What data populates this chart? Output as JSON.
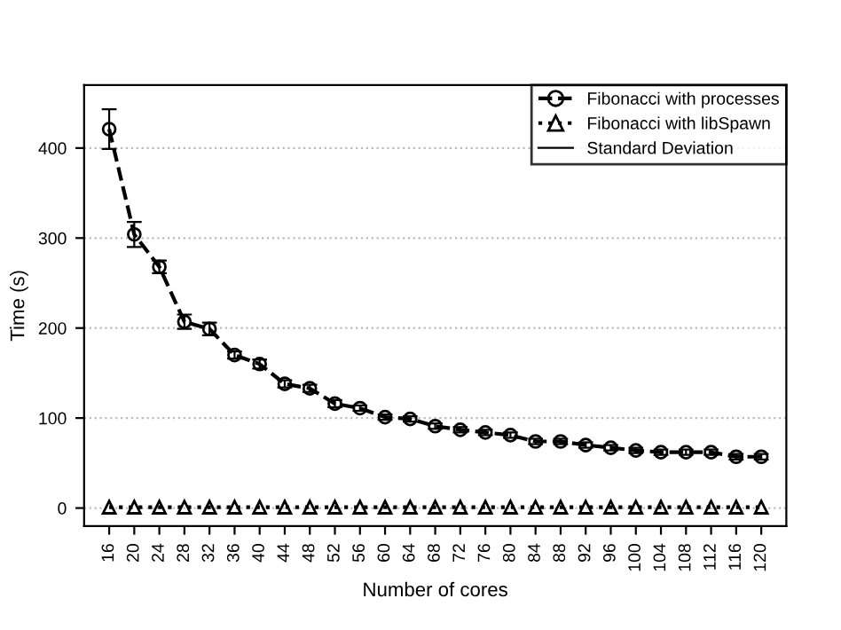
{
  "chart_data": {
    "type": "line",
    "xlabel": "Number of cores",
    "ylabel": "Time (s)",
    "categories": [
      "16",
      "20",
      "24",
      "28",
      "32",
      "36",
      "40",
      "44",
      "48",
      "52",
      "56",
      "60",
      "64",
      "68",
      "72",
      "76",
      "80",
      "84",
      "88",
      "92",
      "96",
      "100",
      "104",
      "108",
      "112",
      "116",
      "120"
    ],
    "series": [
      {
        "name": "Fibonacci with processes",
        "color": "#000000",
        "marker": "circle",
        "line_style": "dashed",
        "values": [
          421,
          304,
          268,
          207,
          199,
          170,
          160,
          138,
          133,
          116,
          111,
          101,
          99,
          91,
          87,
          84,
          81,
          74,
          74,
          70,
          67,
          64,
          62,
          62,
          62,
          57,
          57
        ],
        "errors": [
          22,
          14,
          7,
          8,
          7,
          4,
          5,
          4,
          4,
          4,
          3,
          3,
          3,
          3,
          3,
          3,
          3,
          3,
          3,
          3,
          3,
          3,
          3,
          3,
          3,
          3,
          3
        ]
      },
      {
        "name": "Fibonacci with libSpawn",
        "color": "#000000",
        "marker": "triangle",
        "line_style": "dotted",
        "values": [
          1,
          1,
          1,
          1,
          1,
          1,
          1,
          1,
          1,
          1,
          1,
          1,
          1,
          1,
          1,
          1,
          1,
          1,
          1,
          1,
          1,
          1,
          1,
          1,
          1,
          1,
          1
        ]
      }
    ],
    "annotations": [
      "Standard Deviation"
    ],
    "ylim": [
      -20,
      470
    ],
    "yticks": [
      0,
      100,
      200,
      300,
      400
    ],
    "grid": "y",
    "legend": "top right"
  }
}
